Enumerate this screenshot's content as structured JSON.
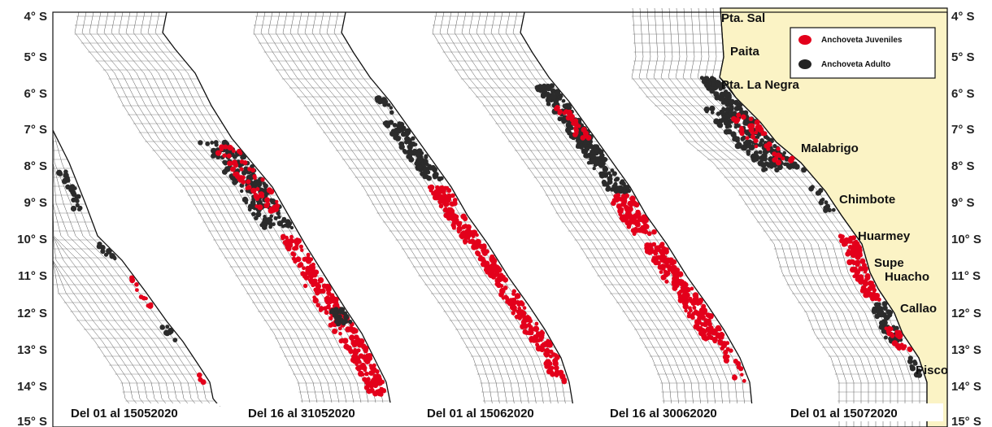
{
  "latitude_labels": [
    "4° S",
    "5° S",
    "6° S",
    "7° S",
    "8° S",
    "9° S",
    "10° S",
    "11° S",
    "12° S",
    "13° S",
    "14° S",
    "15° S"
  ],
  "panels": [
    {
      "label": "Del 01 al 15052020"
    },
    {
      "label": "Del 16 al 31052020"
    },
    {
      "label": "Del 01 al 15062020"
    },
    {
      "label": "Del 16 al 30062020"
    },
    {
      "label": "Del 01 al 15072020"
    }
  ],
  "places": [
    {
      "name": "Pta. Sal"
    },
    {
      "name": "Paita"
    },
    {
      "name": "Pta. La Negra"
    },
    {
      "name": "Malabrigo"
    },
    {
      "name": "Chimbote"
    },
    {
      "name": "Huarmey"
    },
    {
      "name": "Supe"
    },
    {
      "name": "Huacho"
    },
    {
      "name": "Callao"
    },
    {
      "name": "Pisco"
    }
  ],
  "legend": {
    "items": [
      {
        "label": "Anchoveta Juveniles",
        "color": "#e3001b"
      },
      {
        "label": "Anchoveta Adulto",
        "color": "#222222"
      }
    ]
  },
  "colors": {
    "land": "#fbf3c5",
    "juveniles": "#e3001b",
    "adulto": "#2b2b2b"
  }
}
